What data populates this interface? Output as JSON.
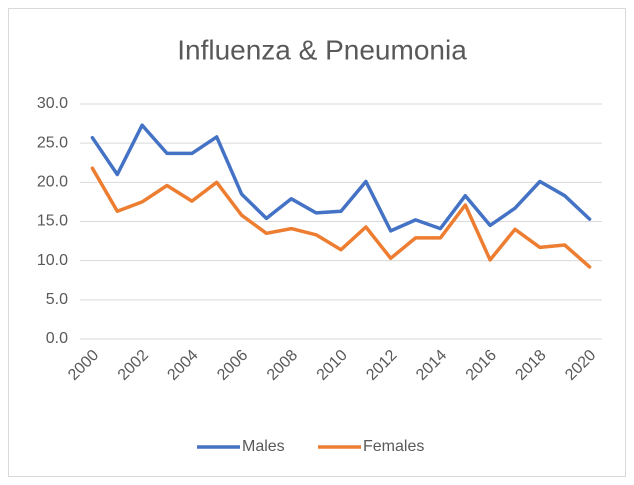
{
  "chart_data": {
    "type": "line",
    "title": "Influenza & Pneumonia",
    "categories": [
      "2000",
      null,
      "2002",
      null,
      "2004",
      null,
      "2006",
      null,
      "2008",
      null,
      "2010",
      null,
      "2012",
      null,
      "2014",
      null,
      "2016",
      null,
      "2018",
      null,
      "2020"
    ],
    "series": [
      {
        "name": "Males",
        "color": "#4472c4",
        "values": [
          25.7,
          21.0,
          27.3,
          23.7,
          23.7,
          25.8,
          18.5,
          15.4,
          17.9,
          16.1,
          16.3,
          20.1,
          13.8,
          15.2,
          14.1,
          18.3,
          14.5,
          16.7,
          20.1,
          18.3,
          15.3
        ]
      },
      {
        "name": "Females",
        "color": "#ed7d31",
        "values": [
          21.8,
          16.3,
          17.5,
          19.6,
          17.6,
          20.0,
          15.8,
          13.5,
          14.1,
          13.3,
          11.4,
          14.3,
          10.3,
          12.9,
          12.9,
          17.1,
          10.1,
          14.0,
          11.7,
          12.0,
          9.2
        ]
      }
    ],
    "ylim": [
      0,
      30
    ],
    "yticks": [
      {
        "value": 0,
        "label": "0.0"
      },
      {
        "value": 5,
        "label": "5.0"
      },
      {
        "value": 10,
        "label": "10.0"
      },
      {
        "value": 15,
        "label": "15.0"
      },
      {
        "value": 20,
        "label": "20.0"
      },
      {
        "value": 25,
        "label": "25.0"
      },
      {
        "value": 30,
        "label": "30.0"
      }
    ],
    "grid": true,
    "legend": "bottom"
  }
}
